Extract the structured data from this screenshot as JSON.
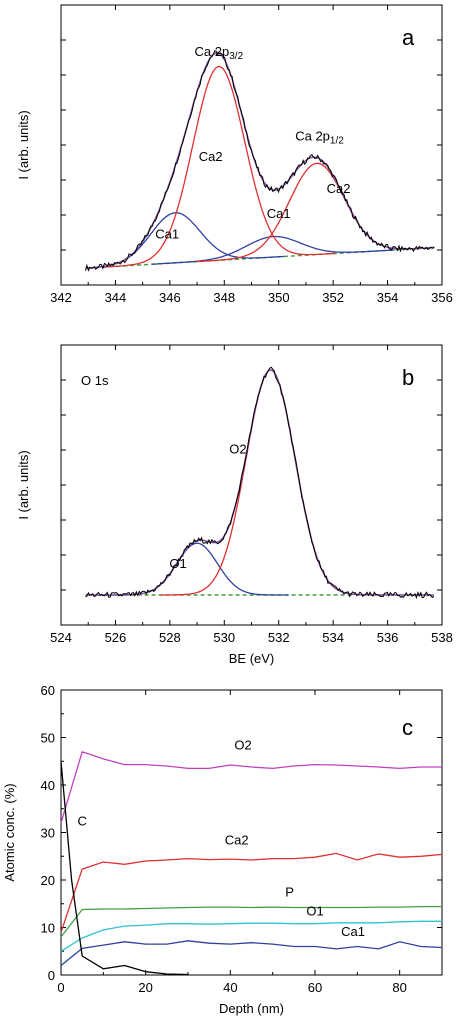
{
  "chart_data": [
    {
      "type": "line",
      "panel_letter": "a",
      "xlim": [
        342,
        356
      ],
      "xticks": [
        "342",
        "344",
        "346",
        "348",
        "350",
        "352",
        "354",
        "356"
      ],
      "ylabel": "I (arb. units)",
      "peak_labels": [
        {
          "text": "Ca 2p",
          "sub": "3/2",
          "x": 347.8,
          "y": 0.93,
          "color": "#000000"
        },
        {
          "text": "Ca 2p",
          "sub": "1/2",
          "x": 351.5,
          "y": 0.56,
          "color": "#000000"
        },
        {
          "text": "Ca2",
          "x": 347.5,
          "y": 0.47,
          "color": "#e03030"
        },
        {
          "text": "Ca2",
          "x": 352.2,
          "y": 0.33,
          "color": "#e03030"
        },
        {
          "text": "Ca1",
          "x": 345.9,
          "y": 0.13,
          "color": "#3040a0"
        },
        {
          "text": "Ca1",
          "x": 350.0,
          "y": 0.22,
          "color": "#3040a0"
        }
      ],
      "series": [
        {
          "name": "Ca1",
          "color": "#3040a0",
          "peaks": [
            {
              "center": 346.2,
              "height": 0.22,
              "width": 0.9
            },
            {
              "center": 349.8,
              "height": 0.09,
              "width": 1.0
            }
          ]
        },
        {
          "name": "Ca2",
          "color": "#e03030",
          "peaks": [
            {
              "center": 347.8,
              "height": 0.85,
              "width": 0.95
            },
            {
              "center": 351.4,
              "height": 0.4,
              "width": 1.0
            }
          ]
        }
      ],
      "baseline": {
        "start": 343,
        "end": 355.8,
        "y0": 0.0,
        "y1": 0.09
      },
      "colors": {
        "envelope": "#000000",
        "fit": "#8050a0",
        "baseline": "#40a040"
      }
    },
    {
      "type": "line",
      "panel_letter": "b",
      "xlim": [
        524,
        538
      ],
      "xticks": [
        "524",
        "526",
        "528",
        "530",
        "532",
        "534",
        "536",
        "538"
      ],
      "xlabel": "BE (eV)",
      "ylabel": "I (arb. units)",
      "region_label": "O 1s",
      "peak_labels": [
        {
          "text": "O1",
          "x": 528.3,
          "y": 0.12,
          "color": "#3040a0"
        },
        {
          "text": "O2",
          "x": 530.5,
          "y": 0.63,
          "color": "#e03030"
        }
      ],
      "series": [
        {
          "name": "O1",
          "color": "#3040a0",
          "peaks": [
            {
              "center": 529.0,
              "height": 0.23,
              "width": 0.75
            }
          ]
        },
        {
          "name": "O2",
          "color": "#e03030",
          "peaks": [
            {
              "center": 531.7,
              "height": 1.0,
              "width": 0.9
            }
          ]
        }
      ],
      "baseline": {
        "start": 526.3,
        "end": 534.8,
        "y0": 0.0,
        "y1": 0.0
      },
      "colors": {
        "envelope": "#000000",
        "fit": "#8050a0",
        "baseline": "#40a040"
      }
    },
    {
      "type": "line",
      "panel_letter": "c",
      "xlim": [
        0,
        90
      ],
      "ylim": [
        0,
        60
      ],
      "xticks": [
        "0",
        "20",
        "40",
        "60",
        "80"
      ],
      "yticks": [
        "0",
        "10",
        "20",
        "30",
        "40",
        "50",
        "60"
      ],
      "xlabel": "Depth (nm)",
      "ylabel": "Atomic conc. (%)",
      "series": [
        {
          "name": "O2",
          "color": "#c040c0",
          "label_x": 43,
          "label_y": 47.5,
          "x": [
            0,
            5,
            10,
            15,
            20,
            25,
            30,
            35,
            40,
            45,
            50,
            55,
            60,
            65,
            70,
            75,
            80,
            85,
            90
          ],
          "y": [
            32,
            47,
            45.5,
            44.3,
            44.3,
            44,
            43.5,
            43.5,
            44.2,
            43.8,
            43.5,
            44,
            44.3,
            44.2,
            44,
            43.8,
            43.5,
            43.8,
            43.8
          ]
        },
        {
          "name": "Ca2",
          "color": "#e03030",
          "label_x": 41.5,
          "label_y": 27.5,
          "x": [
            0,
            5,
            10,
            15,
            20,
            25,
            30,
            35,
            40,
            45,
            50,
            55,
            60,
            65,
            70,
            75,
            80,
            85,
            90
          ],
          "y": [
            9,
            22.3,
            23.8,
            23.3,
            24,
            24.2,
            24.5,
            24.3,
            24.4,
            24.2,
            24.5,
            24.5,
            24.8,
            25.6,
            24.2,
            25.5,
            24.8,
            25,
            25.4
          ]
        },
        {
          "name": "P",
          "color": "#40a040",
          "label_x": 54,
          "label_y": 16.5,
          "x": [
            0,
            5,
            10,
            15,
            20,
            25,
            30,
            35,
            40,
            45,
            50,
            55,
            60,
            65,
            70,
            75,
            80,
            85,
            90
          ],
          "y": [
            8,
            13.8,
            13.9,
            13.9,
            14,
            14.1,
            14.2,
            14.3,
            14.3,
            14.2,
            14.3,
            14.2,
            14.2,
            14.2,
            14.2,
            14.3,
            14.3,
            14.4,
            14.4
          ]
        },
        {
          "name": "O1",
          "color": "#30c0d0",
          "label_x": 60,
          "label_y": 12.5,
          "x": [
            0,
            5,
            10,
            15,
            20,
            25,
            30,
            35,
            40,
            45,
            50,
            55,
            60,
            65,
            70,
            75,
            80,
            85,
            90
          ],
          "y": [
            5,
            7.8,
            9.5,
            10.3,
            10.5,
            10.8,
            10.8,
            10.7,
            10.8,
            10.9,
            10.9,
            10.8,
            10.8,
            11,
            11,
            11,
            11.2,
            11.3,
            11.3
          ]
        },
        {
          "name": "Ca1",
          "color": "#3040a0",
          "label_x": 69,
          "label_y": 8.2,
          "x": [
            0,
            5,
            10,
            15,
            20,
            25,
            30,
            35,
            40,
            45,
            50,
            55,
            60,
            65,
            70,
            75,
            80,
            85,
            90
          ],
          "y": [
            2,
            5.6,
            6.3,
            7,
            6.5,
            6.5,
            7.2,
            6.7,
            6.5,
            6.8,
            6.5,
            6,
            6,
            5.5,
            6,
            5.5,
            7,
            6,
            5.8
          ]
        },
        {
          "name": "C",
          "color": "#000000",
          "label_x": 5,
          "label_y": 31.5,
          "x": [
            0,
            2.5,
            5,
            10,
            15,
            20,
            25,
            30
          ],
          "y": [
            45,
            20,
            4,
            1.3,
            2,
            0.7,
            0.2,
            0.1
          ]
        }
      ]
    }
  ]
}
